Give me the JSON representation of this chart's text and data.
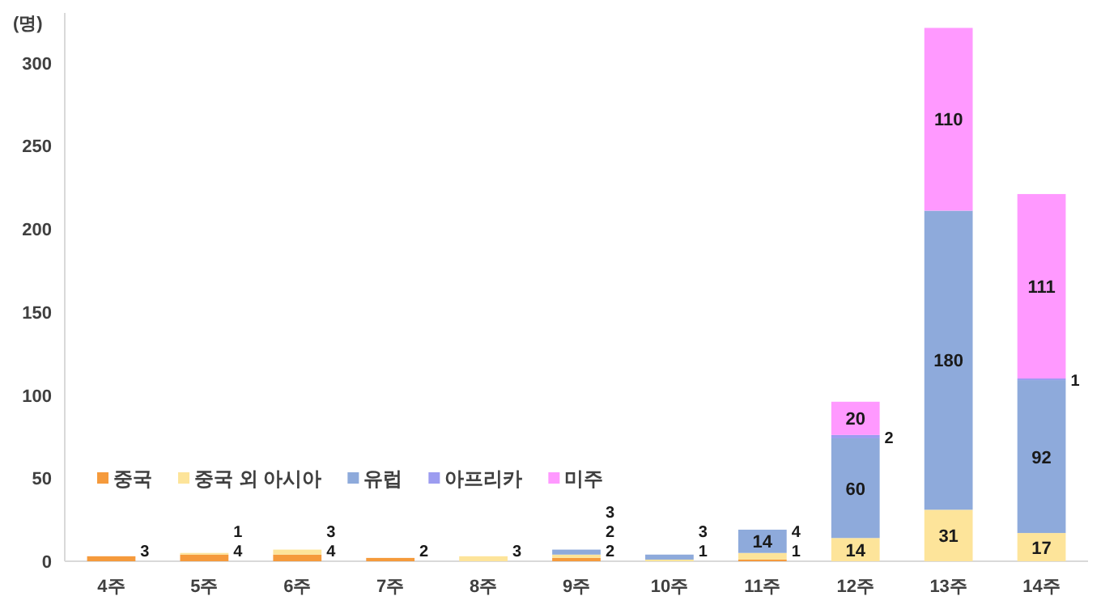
{
  "chart_data": {
    "type": "bar",
    "stacked": true,
    "ylabel": "(명)",
    "categories": [
      "4주",
      "5주",
      "6주",
      "7주",
      "8주",
      "9주",
      "10주",
      "11주",
      "12주",
      "13주",
      "14주"
    ],
    "series": [
      {
        "name": "중국",
        "color": "#f59a3c",
        "values": [
          3,
          4,
          4,
          2,
          null,
          2,
          null,
          1,
          null,
          null,
          null
        ]
      },
      {
        "name": "중국 외 아시아",
        "color": "#fde49a",
        "values": [
          null,
          1,
          3,
          null,
          3,
          2,
          1,
          4,
          14,
          31,
          17
        ]
      },
      {
        "name": "유럽",
        "color": "#8eaadb",
        "values": [
          null,
          null,
          null,
          null,
          null,
          3,
          3,
          14,
          60,
          180,
          92
        ]
      },
      {
        "name": "아프리카",
        "color": "#9c9cf0",
        "values": [
          null,
          null,
          null,
          null,
          null,
          null,
          null,
          null,
          2,
          null,
          1
        ]
      },
      {
        "name": "미주",
        "color": "#ff99ff",
        "values": [
          null,
          null,
          null,
          null,
          null,
          null,
          null,
          null,
          20,
          110,
          111
        ]
      }
    ],
    "ylim": [
      0,
      330
    ],
    "yticks": [
      0,
      50,
      100,
      150,
      200,
      250,
      300
    ],
    "data_labels": true,
    "legend": "bottom left",
    "grid": false
  }
}
